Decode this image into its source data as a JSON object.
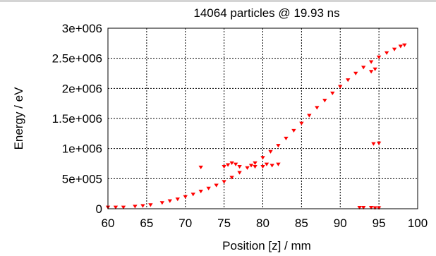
{
  "chart_data": {
    "type": "scatter",
    "title": "14064 particles @ 19.93 ns",
    "xlabel": "Position [z]  / mm",
    "ylabel": "Energy / eV",
    "xlim": [
      60,
      100
    ],
    "ylim": [
      0,
      3000000
    ],
    "x_ticks": [
      "60",
      "65",
      "70",
      "75",
      "80",
      "85",
      "90",
      "95",
      "100"
    ],
    "y_ticks": [
      "0",
      "5e+005",
      "1e+006",
      "1.5e+006",
      "2e+006",
      "2.5e+006",
      "3e+006"
    ],
    "grid": true,
    "marker": "triangle-down",
    "series": [
      {
        "color": "#ff0000",
        "points": [
          [
            60,
            25000
          ],
          [
            61,
            25000
          ],
          [
            62,
            25000
          ],
          [
            63.5,
            40000
          ],
          [
            64.5,
            50000
          ],
          [
            65.5,
            65000
          ],
          [
            67,
            100000
          ],
          [
            68,
            130000
          ],
          [
            69,
            160000
          ],
          [
            70,
            200000
          ],
          [
            71,
            240000
          ],
          [
            72,
            290000
          ],
          [
            73,
            340000
          ],
          [
            74,
            390000
          ],
          [
            75,
            450000
          ],
          [
            76,
            520000
          ],
          [
            77,
            600000
          ],
          [
            78,
            680000
          ],
          [
            79,
            760000
          ],
          [
            80,
            850000
          ],
          [
            81,
            950000
          ],
          [
            82,
            1050000
          ],
          [
            83,
            1170000
          ],
          [
            84,
            1300000
          ],
          [
            85,
            1420000
          ],
          [
            86,
            1550000
          ],
          [
            87,
            1680000
          ],
          [
            88,
            1800000
          ],
          [
            89,
            1920000
          ],
          [
            90,
            2030000
          ],
          [
            91,
            2140000
          ],
          [
            92,
            2250000
          ],
          [
            93,
            2350000
          ],
          [
            94,
            2440000
          ],
          [
            95,
            2520000
          ],
          [
            96,
            2590000
          ],
          [
            97,
            2650000
          ],
          [
            97.8,
            2700000
          ],
          [
            98.3,
            2720000
          ]
        ]
      },
      {
        "color": "#ff0000",
        "points": [
          [
            72,
            690000
          ],
          [
            75,
            700000
          ],
          [
            75.5,
            730000
          ],
          [
            76,
            760000
          ],
          [
            76.5,
            740000
          ],
          [
            77,
            700000
          ],
          [
            78.5,
            720000
          ],
          [
            79,
            700000
          ],
          [
            80,
            700000
          ],
          [
            80.5,
            740000
          ],
          [
            81.2,
            720000
          ],
          [
            82,
            740000
          ],
          [
            92.5,
            20000
          ],
          [
            93,
            20000
          ],
          [
            94,
            20000
          ],
          [
            94.5,
            15000
          ],
          [
            95,
            15000
          ],
          [
            94,
            2280000
          ],
          [
            94.5,
            2320000
          ],
          [
            94.3,
            1080000
          ],
          [
            95,
            1090000
          ]
        ]
      }
    ]
  }
}
